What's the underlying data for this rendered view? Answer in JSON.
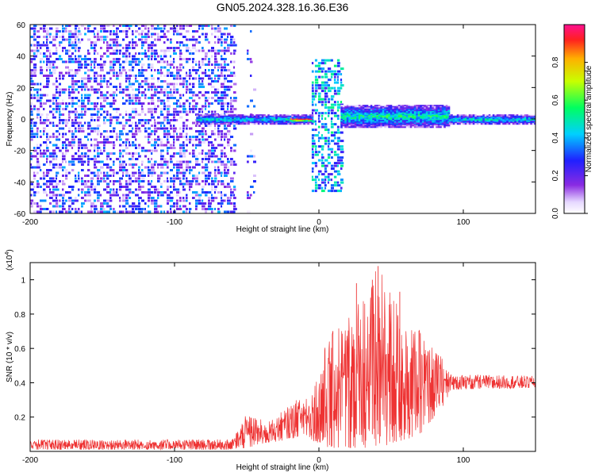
{
  "figure": {
    "title": "GN05.2024.328.16.36.E36"
  },
  "chart_data": [
    {
      "type": "heatmap",
      "xlabel": "Height of straight line (km)",
      "ylabel": "Frequency (Hz)",
      "xlim": [
        -200,
        150
      ],
      "ylim": [
        -60,
        60
      ],
      "x_ticks": [
        -200,
        -100,
        0,
        100
      ],
      "y_ticks": [
        -60,
        -40,
        -20,
        0,
        20,
        40,
        60
      ],
      "colorbar": {
        "label": "Normalized spectral amplitude",
        "range": [
          0,
          1
        ],
        "ticks": [
          0.0,
          0.2,
          0.4,
          0.6,
          0.8
        ],
        "tick_labels": [
          "0.0",
          "0.2",
          "0.4",
          "0.6",
          "0.8"
        ],
        "colormap": "rainbow"
      },
      "regions": [
        {
          "x_range": [
            -200,
            -58
          ],
          "f_range": [
            -60,
            60
          ],
          "amplitude": 0.05,
          "description_key": "broadband"
        },
        {
          "x_range": [
            -50,
            -45
          ],
          "f_range": [
            -60,
            60
          ],
          "amplitude": 0.02
        },
        {
          "x_range": [
            -85,
            -5
          ],
          "f_center": 0,
          "f_halfwidth": 3,
          "amplitude": 0.4
        },
        {
          "x_range": [
            -20,
            -5
          ],
          "f_center": 0,
          "f_halfwidth": 1,
          "amplitude": 0.95
        },
        {
          "x_range": [
            -5,
            15
          ],
          "f_range": [
            -45,
            38
          ],
          "amplitude": 0.2
        },
        {
          "x_range": [
            15,
            90
          ],
          "f_center": 2,
          "f_halfwidth": 7,
          "amplitude": 0.45
        },
        {
          "x_range": [
            90,
            150
          ],
          "f_center": 0,
          "f_halfwidth": 3,
          "amplitude": 0.4
        }
      ]
    },
    {
      "type": "line",
      "xlabel": "Height of straight line (km)",
      "ylabel": "SNR (10 * v/v)",
      "y_multiplier": "(x10",
      "y_multiplier_exp": "4",
      "y_multiplier_close": ")",
      "xlim": [
        -200,
        150
      ],
      "ylim": [
        0,
        1.1
      ],
      "x_ticks": [
        -200,
        -100,
        0,
        100
      ],
      "y_ticks": [
        0.2,
        0.4,
        0.6,
        0.8,
        1.0
      ],
      "color": "#ee3333",
      "envelope": [
        {
          "x": -200,
          "low": 0.01,
          "high": 0.07
        },
        {
          "x": -60,
          "low": 0.01,
          "high": 0.07
        },
        {
          "x": -50,
          "low": 0.02,
          "high": 0.22
        },
        {
          "x": -35,
          "low": 0.05,
          "high": 0.17
        },
        {
          "x": -20,
          "low": 0.07,
          "high": 0.27
        },
        {
          "x": -10,
          "low": 0.1,
          "high": 0.34
        },
        {
          "x": -2,
          "low": 0.05,
          "high": 0.42
        },
        {
          "x": 5,
          "low": 0.02,
          "high": 0.65
        },
        {
          "x": 20,
          "low": 0.02,
          "high": 0.82
        },
        {
          "x": 35,
          "low": 0.02,
          "high": 0.98
        },
        {
          "x": 40,
          "low": 0.02,
          "high": 1.08
        },
        {
          "x": 55,
          "low": 0.05,
          "high": 0.88
        },
        {
          "x": 70,
          "low": 0.1,
          "high": 0.7
        },
        {
          "x": 85,
          "low": 0.25,
          "high": 0.55
        },
        {
          "x": 92,
          "low": 0.36,
          "high": 0.45
        },
        {
          "x": 150,
          "low": 0.37,
          "high": 0.44
        }
      ],
      "peaks": [
        {
          "x": 37,
          "y": 1.0
        },
        {
          "x": 41,
          "y": 1.08
        },
        {
          "x": 26,
          "y": 0.98
        },
        {
          "x": 56,
          "y": 0.93
        }
      ]
    }
  ]
}
